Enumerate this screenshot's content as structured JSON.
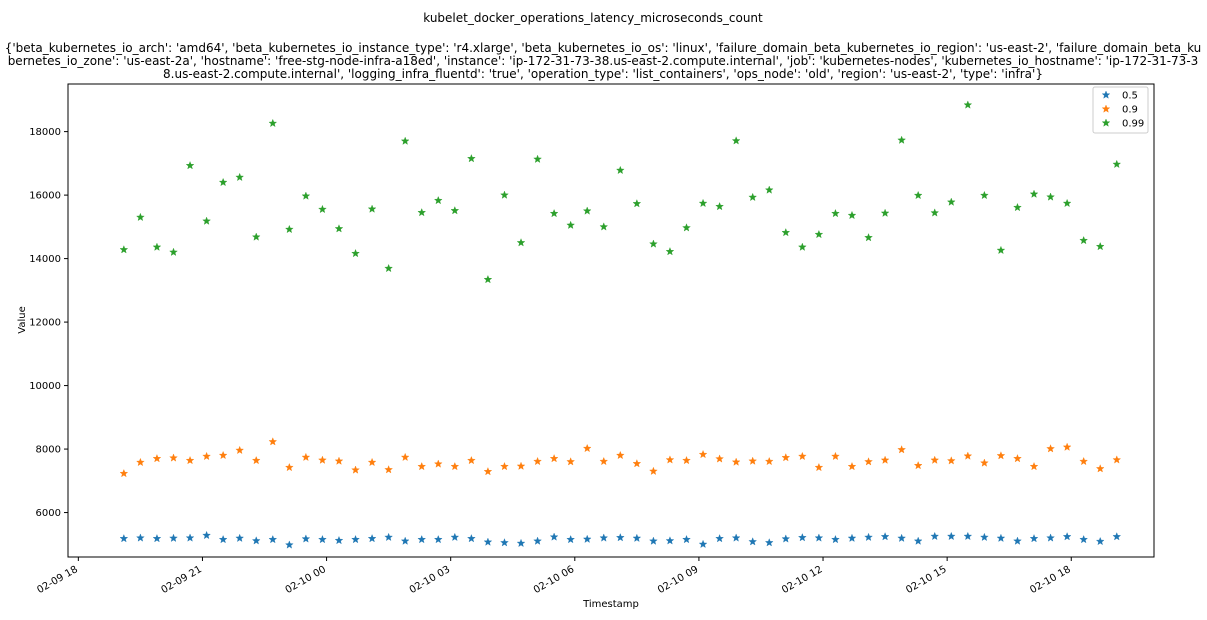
{
  "chart_data": {
    "type": "scatter",
    "title": "kubelet_docker_operations_latency_microseconds_count",
    "subtitle_lines": [
      "{'beta_kubernetes_io_arch': 'amd64', 'beta_kubernetes_io_instance_type': 'r4.xlarge', 'beta_kubernetes_io_os': 'linux', 'failure_domain_beta_kubernetes_io_region': 'us-east-2', 'failure_domain_beta_ku",
      "bernetes_io_zone': 'us-east-2a', 'hostname': 'free-stg-node-infra-a18ed', 'instance': 'ip-172-31-73-38.us-east-2.compute.internal', 'job': 'kubernetes-nodes', 'kubernetes_io_hostname': 'ip-172-31-73-3",
      "8.us-east-2.compute.internal', 'logging_infra_fluentd': 'true', 'operation_type': 'list_containers', 'ops_node': 'old', 'region': 'us-east-2', 'type': 'infra'}"
    ],
    "xlabel": "Timestamp",
    "ylabel": "Value",
    "x_ticks": [
      "02-09 18",
      "02-09 21",
      "02-10 00",
      "02-10 03",
      "02-10 06",
      "02-10 09",
      "02-10 12",
      "02-10 15",
      "02-10 18"
    ],
    "y_ticks": [
      6000,
      8000,
      10000,
      12000,
      14000,
      16000,
      18000
    ],
    "xlim": [
      "2019-02-09 17:45",
      "2019-02-10 20:00"
    ],
    "ylim": [
      4600,
      19500
    ],
    "legend_position": "top-right",
    "marker": "star",
    "x": [
      "2019-02-09 19:06",
      "2019-02-09 19:30",
      "2019-02-09 19:54",
      "2019-02-09 20:18",
      "2019-02-09 20:42",
      "2019-02-09 21:06",
      "2019-02-09 21:30",
      "2019-02-09 21:54",
      "2019-02-09 22:18",
      "2019-02-09 22:42",
      "2019-02-09 23:06",
      "2019-02-09 23:30",
      "2019-02-09 23:54",
      "2019-02-10 00:18",
      "2019-02-10 00:42",
      "2019-02-10 01:06",
      "2019-02-10 01:30",
      "2019-02-10 01:54",
      "2019-02-10 02:18",
      "2019-02-10 02:42",
      "2019-02-10 03:06",
      "2019-02-10 03:30",
      "2019-02-10 03:54",
      "2019-02-10 04:18",
      "2019-02-10 04:42",
      "2019-02-10 05:06",
      "2019-02-10 05:30",
      "2019-02-10 05:54",
      "2019-02-10 06:18",
      "2019-02-10 06:42",
      "2019-02-10 07:06",
      "2019-02-10 07:30",
      "2019-02-10 07:54",
      "2019-02-10 08:18",
      "2019-02-10 08:42",
      "2019-02-10 09:06",
      "2019-02-10 09:30",
      "2019-02-10 09:54",
      "2019-02-10 10:18",
      "2019-02-10 10:42",
      "2019-02-10 11:06",
      "2019-02-10 11:30",
      "2019-02-10 11:54",
      "2019-02-10 12:18",
      "2019-02-10 12:42",
      "2019-02-10 13:06",
      "2019-02-10 13:30",
      "2019-02-10 13:54",
      "2019-02-10 14:18",
      "2019-02-10 14:42",
      "2019-02-10 15:06",
      "2019-02-10 15:30",
      "2019-02-10 15:54",
      "2019-02-10 16:18",
      "2019-02-10 16:42",
      "2019-02-10 17:06",
      "2019-02-10 17:30",
      "2019-02-10 17:54",
      "2019-02-10 18:18",
      "2019-02-10 18:42",
      "2019-02-10 19:06"
    ],
    "series": [
      {
        "name": "0.5",
        "color": "#1f77b4",
        "values": [
          5180,
          5200,
          5180,
          5190,
          5200,
          5280,
          5150,
          5190,
          5110,
          5150,
          4980,
          5170,
          5150,
          5120,
          5150,
          5180,
          5220,
          5100,
          5150,
          5150,
          5220,
          5180,
          5070,
          5050,
          5030,
          5100,
          5230,
          5150,
          5160,
          5200,
          5210,
          5190,
          5100,
          5110,
          5150,
          5000,
          5180,
          5200,
          5080,
          5050,
          5170,
          5210,
          5200,
          5150,
          5190,
          5220,
          5240,
          5190,
          5100,
          5250,
          5250,
          5250,
          5220,
          5190,
          5100,
          5180,
          5200,
          5240,
          5150,
          5090,
          5240
        ]
      },
      {
        "name": "0.9",
        "color": "#ff7f0e",
        "values": [
          7230,
          7580,
          7700,
          7720,
          7640,
          7770,
          7800,
          7960,
          7640,
          8230,
          7420,
          7740,
          7650,
          7620,
          7340,
          7580,
          7350,
          7740,
          7450,
          7530,
          7450,
          7640,
          7290,
          7450,
          7460,
          7610,
          7700,
          7600,
          8020,
          7610,
          7800,
          7540,
          7300,
          7660,
          7640,
          7830,
          7690,
          7590,
          7620,
          7610,
          7730,
          7770,
          7420,
          7770,
          7450,
          7600,
          7650,
          7980,
          7480,
          7650,
          7630,
          7780,
          7560,
          7790,
          7700,
          7450,
          8010,
          8060,
          7610,
          7380,
          7660
        ]
      },
      {
        "name": "0.99",
        "color": "#2ca02c",
        "values": [
          14280,
          15300,
          14360,
          14200,
          16930,
          15180,
          16400,
          16560,
          14680,
          18260,
          14920,
          15970,
          15550,
          14940,
          14160,
          15560,
          13690,
          17700,
          15450,
          15830,
          15510,
          17150,
          13340,
          16000,
          14500,
          17130,
          15420,
          15050,
          15500,
          15000,
          16780,
          15730,
          14460,
          14220,
          14970,
          15740,
          15640,
          17710,
          15930,
          16160,
          14820,
          14360,
          14760,
          15420,
          15360,
          14660,
          15430,
          17730,
          15990,
          15440,
          15780,
          18840,
          15990,
          14260,
          15610,
          16030,
          15940,
          15740,
          14570,
          14380,
          16970
        ]
      }
    ]
  }
}
